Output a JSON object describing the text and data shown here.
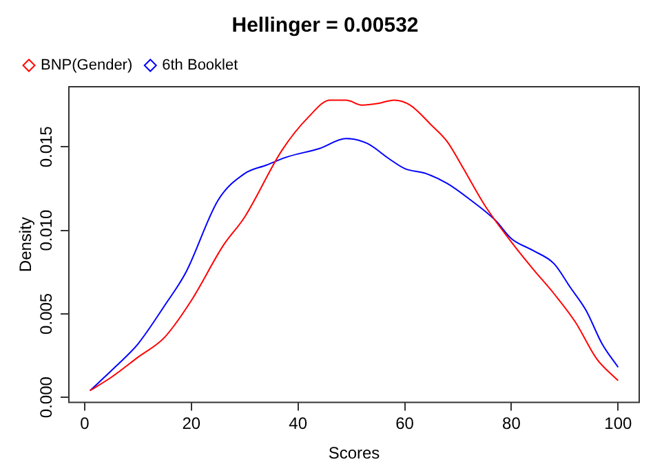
{
  "chart_data": {
    "type": "line",
    "title": "Hellinger = 0.00532",
    "xlabel": "Scores",
    "ylabel": "Density",
    "xlim": [
      -2.96,
      103.96
    ],
    "ylim": [
      -0.0003,
      0.0186
    ],
    "xticks": [
      0,
      20,
      40,
      60,
      80,
      100
    ],
    "yticks": [
      {
        "value": 0,
        "label": "0.000"
      },
      {
        "value": 0.005,
        "label": "0.005"
      },
      {
        "value": 0.01,
        "label": "0.010"
      },
      {
        "value": 0.015,
        "label": "0.015"
      }
    ],
    "legend": "top left",
    "grid": false,
    "series": [
      {
        "name": "BNP(Gender)",
        "color": "#ff0000",
        "x": [
          1,
          5,
          10,
          15,
          20,
          26,
          30,
          37,
          42,
          46,
          49,
          52,
          55,
          58,
          61,
          65,
          68,
          71,
          75,
          80,
          84,
          88,
          92,
          96,
          100
        ],
        "values": [
          0.0004,
          0.0012,
          0.0024,
          0.0036,
          0.0058,
          0.0091,
          0.0108,
          0.0148,
          0.0168,
          0.0178,
          0.0178,
          0.0175,
          0.0176,
          0.0178,
          0.0175,
          0.0163,
          0.0153,
          0.0137,
          0.0115,
          0.0093,
          0.0077,
          0.0062,
          0.0045,
          0.0023,
          0.001
        ]
      },
      {
        "name": "6th Booklet",
        "color": "#0000ff",
        "x": [
          1,
          6,
          10,
          15,
          19,
          25,
          30,
          34,
          38,
          44,
          49,
          53,
          57,
          60,
          64,
          68,
          72,
          77,
          80,
          84,
          88,
          91,
          94,
          97,
          100
        ],
        "values": [
          0.0004,
          0.0019,
          0.0032,
          0.0055,
          0.0075,
          0.0118,
          0.0134,
          0.0139,
          0.0144,
          0.0149,
          0.0155,
          0.0152,
          0.0143,
          0.0137,
          0.0134,
          0.0128,
          0.0119,
          0.0106,
          0.0095,
          0.0088,
          0.008,
          0.0066,
          0.0052,
          0.0032,
          0.0018
        ]
      }
    ]
  }
}
